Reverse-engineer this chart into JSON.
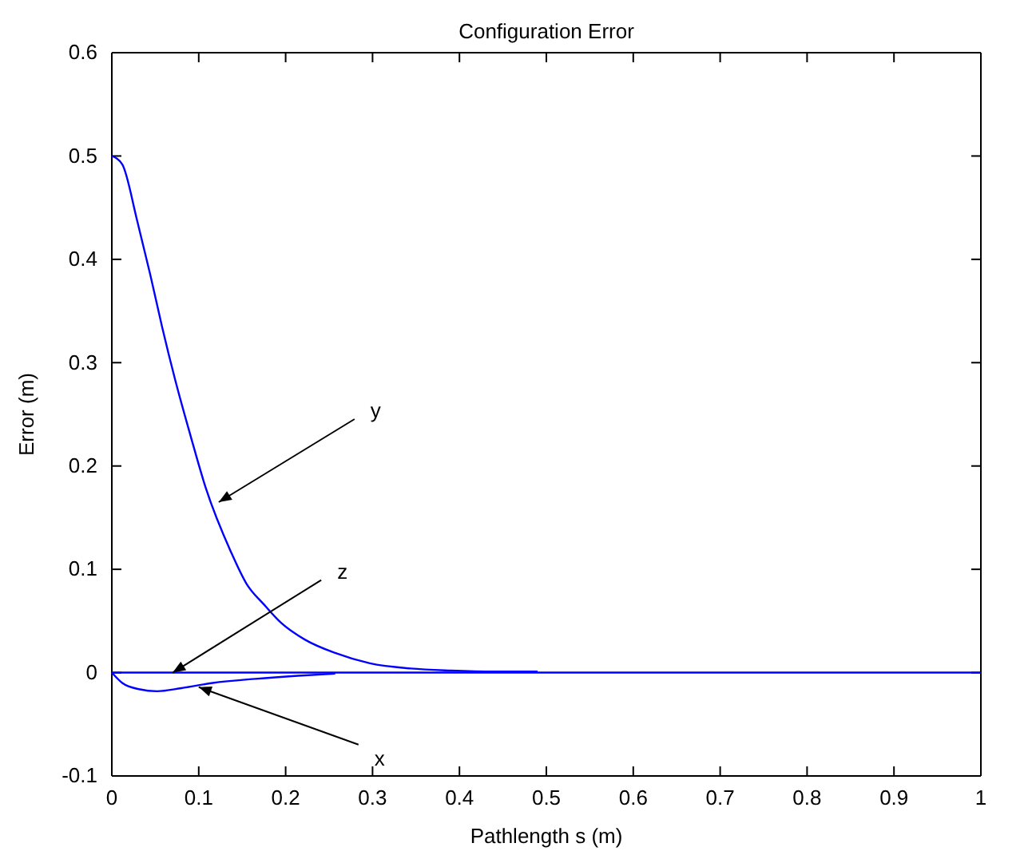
{
  "chart_data": {
    "type": "line",
    "title": "Configuration Error",
    "xlabel": "Pathlength s (m)",
    "ylabel": "Error (m)",
    "xlim": [
      0,
      1
    ],
    "xticks": [
      0,
      0.1,
      0.2,
      0.3,
      0.4,
      0.5,
      0.6,
      0.7,
      0.8,
      0.9,
      1
    ],
    "ylim": [
      -0.1,
      0.6
    ],
    "yticks": [
      -0.1,
      0,
      0.1,
      0.2,
      0.3,
      0.4,
      0.5,
      0.6
    ],
    "grid": false,
    "marker": "none",
    "line_style": "solid",
    "series": [
      {
        "color": "#0000ff",
        "x": [
          0,
          0.012,
          0.029,
          0.044,
          0.058,
          0.073,
          0.09,
          0.108,
          0.137,
          0.155,
          0.175,
          0.195,
          0.222,
          0.257,
          0.297,
          0.344,
          0.39,
          0.44,
          0.49
        ],
        "values": [
          0.5,
          0.492,
          0.438,
          0.386,
          0.334,
          0.283,
          0.231,
          0.179,
          0.117,
          0.086,
          0.066,
          0.048,
          0.032,
          0.019,
          0.009,
          0.004,
          0.002,
          0.001,
          0.001
        ]
      },
      {
        "color": "#0000ff",
        "x": [
          0,
          1
        ],
        "values": [
          0,
          0
        ]
      },
      {
        "color": "#0000ff",
        "x": [
          0,
          0.012,
          0.031,
          0.052,
          0.08,
          0.116,
          0.165,
          0.214,
          0.257
        ],
        "values": [
          0,
          -0.01,
          -0.016,
          -0.018,
          -0.015,
          -0.01,
          -0.006,
          -0.003,
          -0.001
        ]
      }
    ],
    "annotations": [
      {
        "text": "y",
        "x": 0.123,
        "y": 0.165
      },
      {
        "text": "z",
        "x": 0.07,
        "y": 0
      },
      {
        "text": "x",
        "x": 0.1,
        "y": -0.014
      }
    ]
  }
}
